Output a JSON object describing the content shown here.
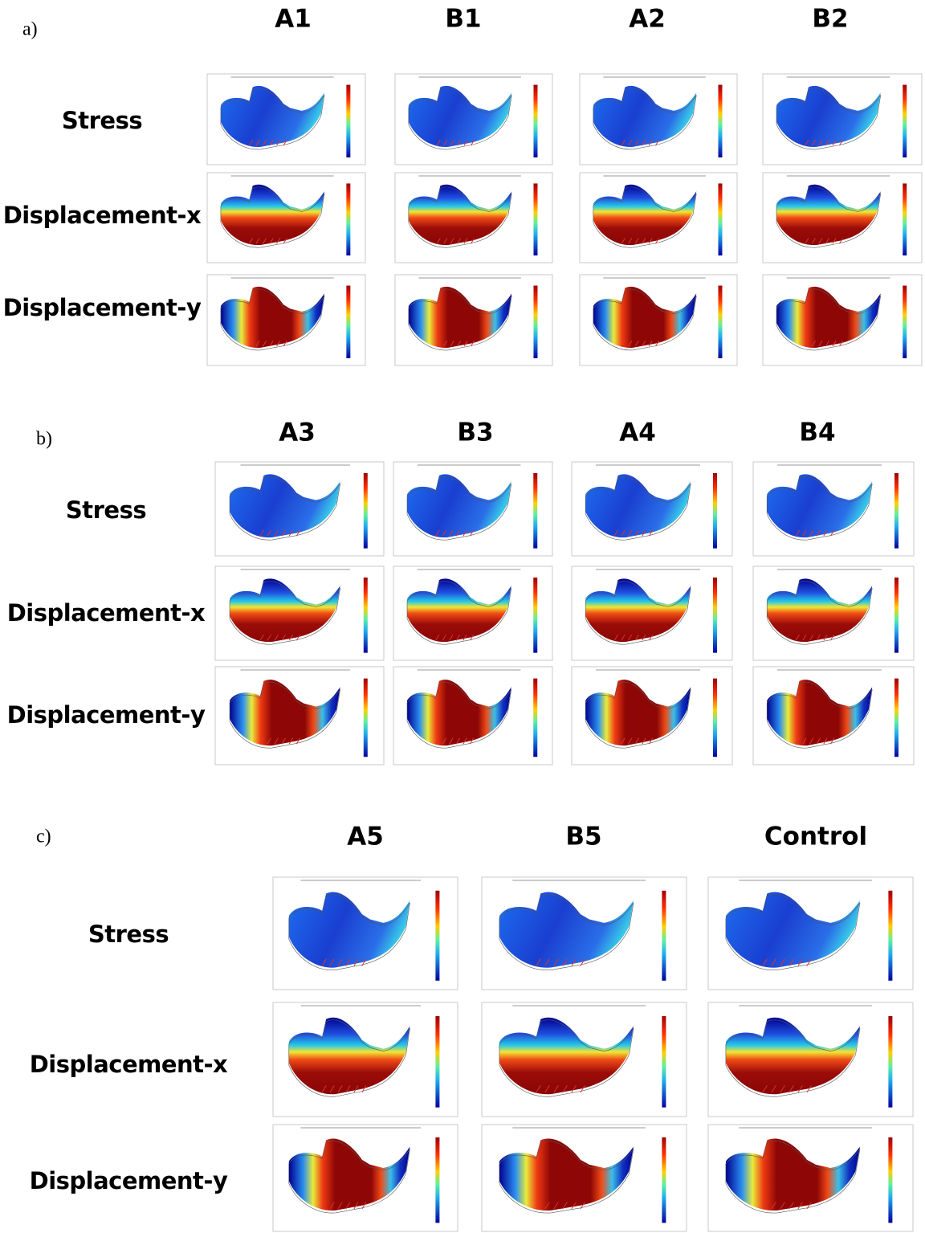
{
  "sections": [
    {
      "label": "a)",
      "columns": [
        "A1",
        "B1",
        "A2",
        "B2"
      ],
      "rows": [
        "Stress",
        "Displacement-x",
        "Displacement-y"
      ]
    },
    {
      "label": "b)",
      "columns": [
        "A3",
        "B3",
        "A4",
        "B4"
      ],
      "rows": [
        "Stress",
        "Displacement-x",
        "Displacement-y"
      ]
    },
    {
      "label": "c)",
      "columns": [
        "A5",
        "B5",
        "Control"
      ],
      "rows": [
        "Stress",
        "Displacement-x",
        "Displacement-y"
      ]
    }
  ]
}
